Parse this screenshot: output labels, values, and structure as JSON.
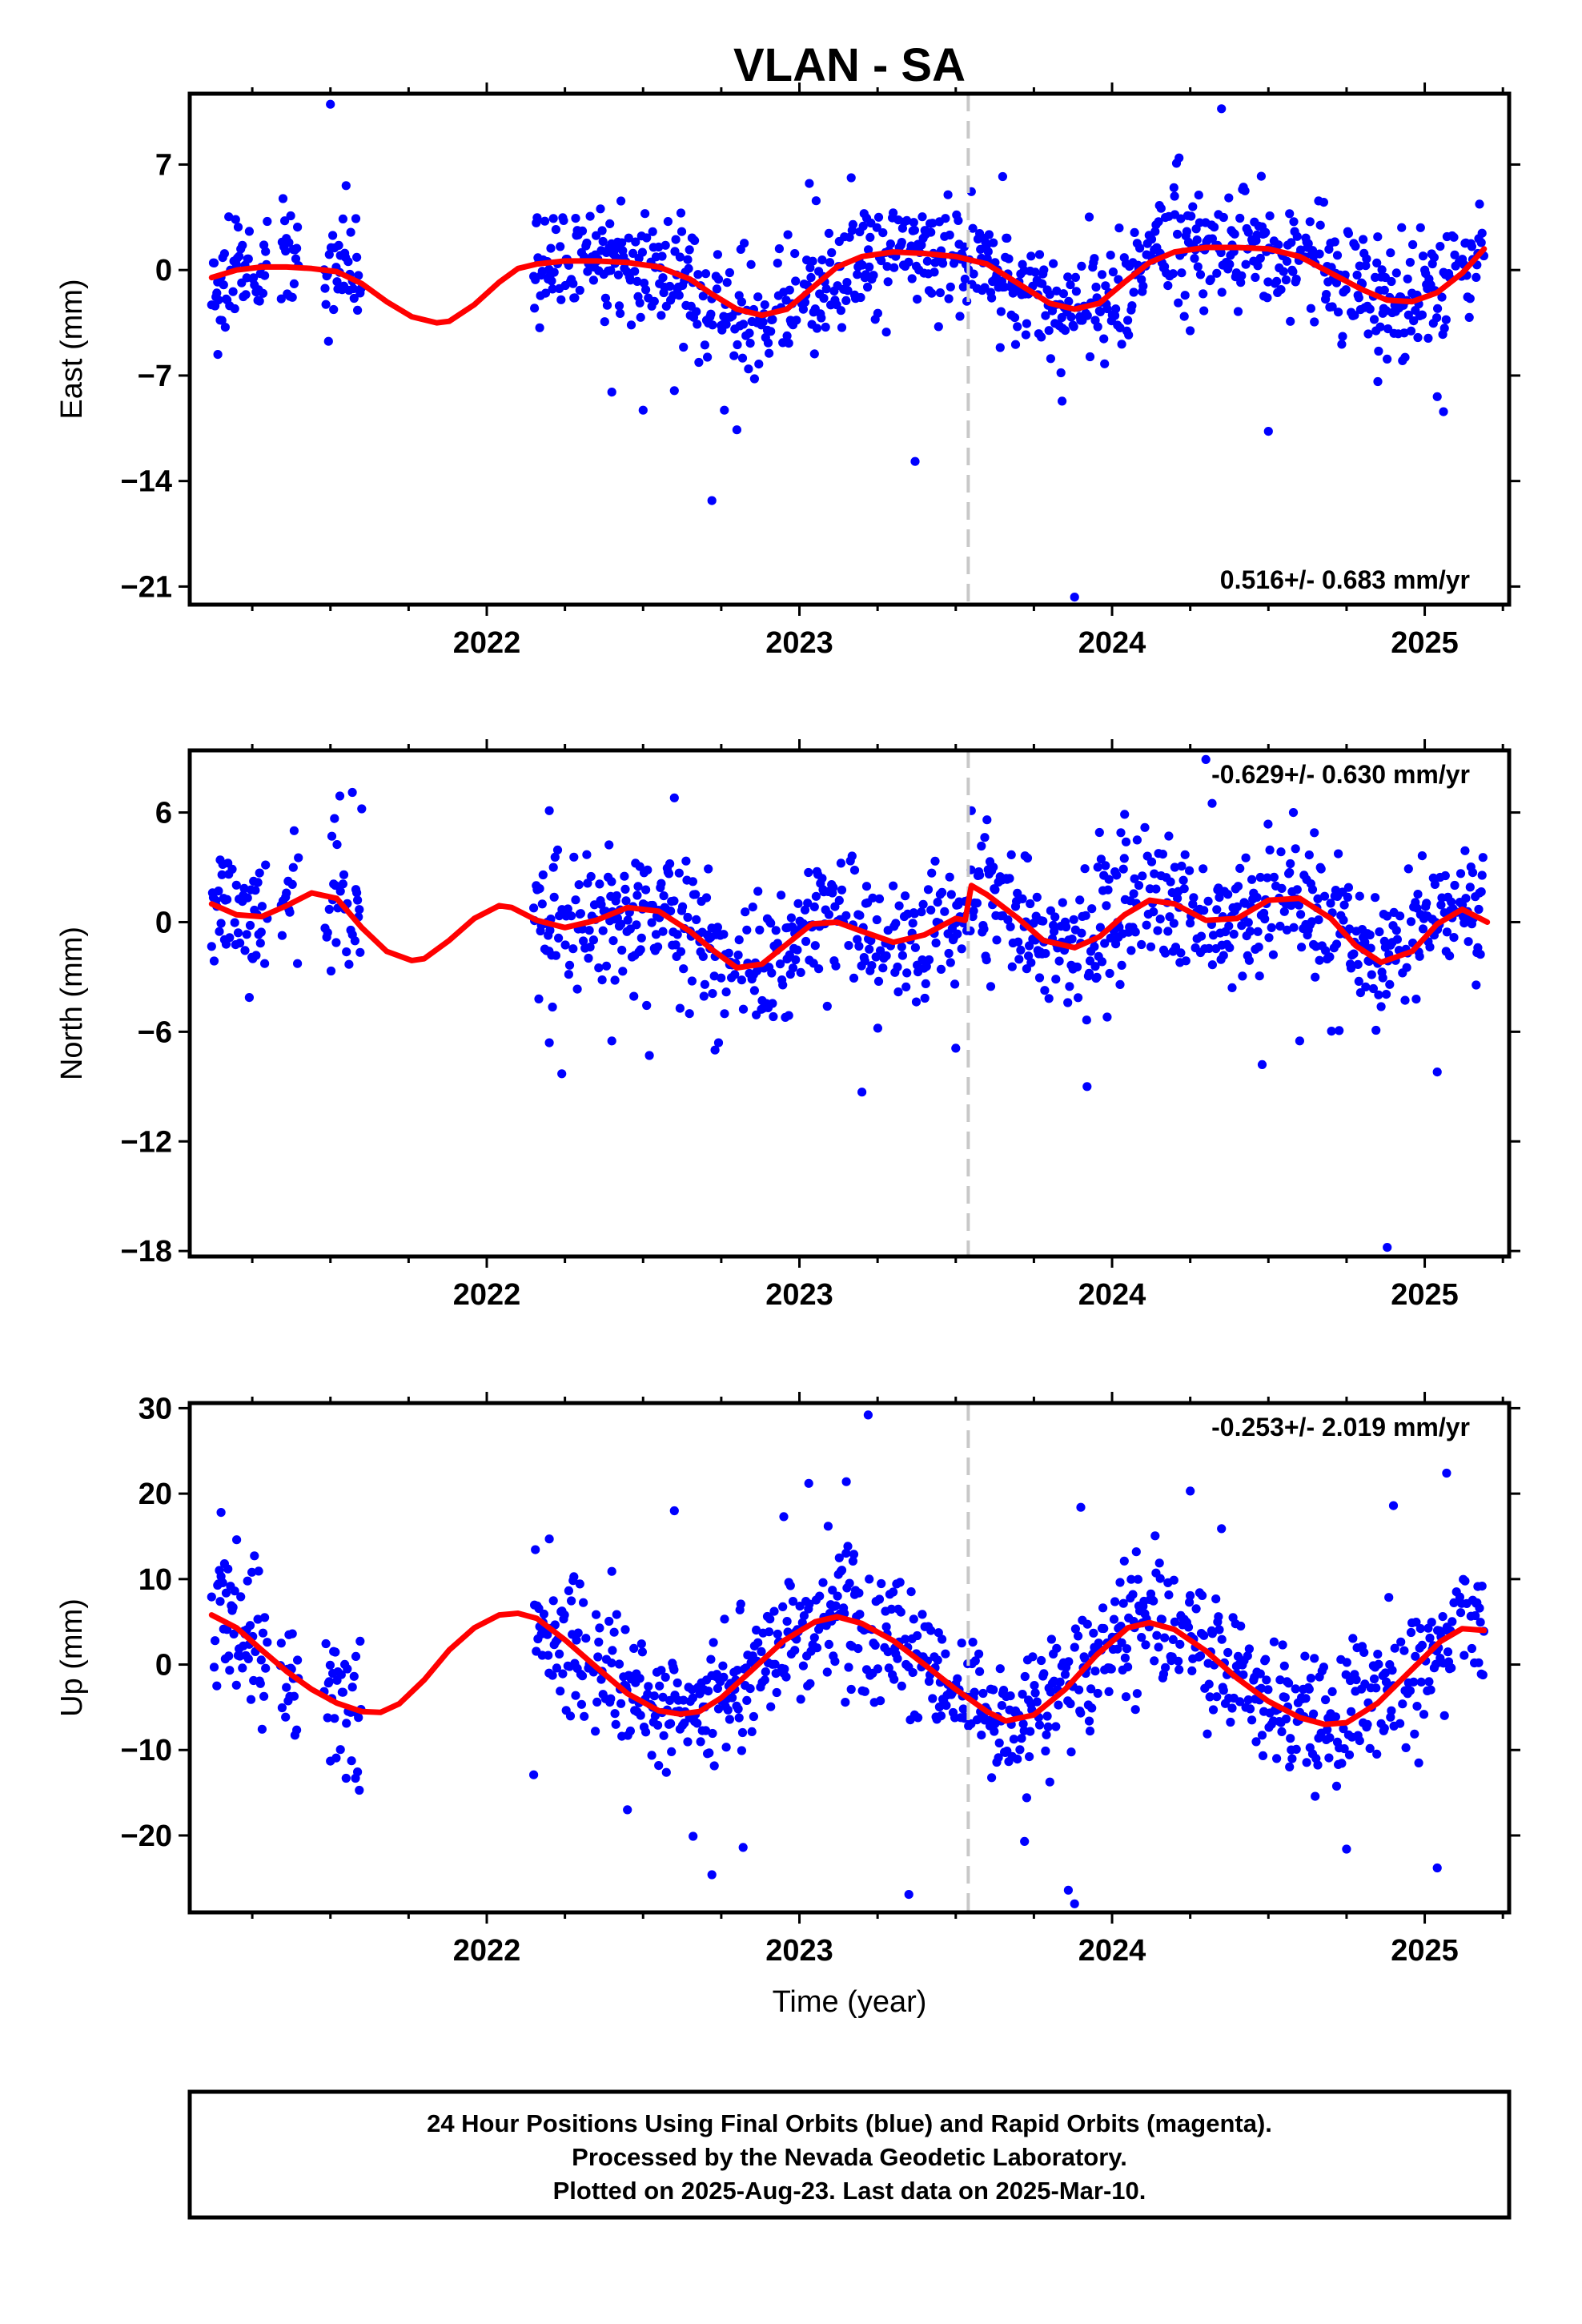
{
  "title": "VLAN - SA",
  "colors": {
    "points": "#0000ff",
    "model": "#ff0000",
    "event_line": "#c8c8c8",
    "frame": "#000000"
  },
  "chart_data": [
    {
      "type": "scatter",
      "ylabel": "East (mm)",
      "xlabel": "",
      "xlim": [
        2021.05,
        2025.27
      ],
      "ylim": [
        -22.2,
        11.7
      ],
      "yticks": [
        7,
        0,
        -7,
        -14,
        -21
      ],
      "xticks": [
        2022,
        2023,
        2024,
        2025
      ],
      "event_line_x": 2023.54,
      "rate_text": "0.516+/- 0.683 mm/yr",
      "rate_position": "bottom-right",
      "model": {
        "name": "",
        "x": [
          2021.12,
          2021.2,
          2021.28,
          2021.36,
          2021.44,
          2021.52,
          2021.6,
          2021.68,
          2021.76,
          2021.84,
          2021.88,
          2021.96,
          2022.04,
          2022.1,
          2022.16,
          2022.25,
          2022.35,
          2022.45,
          2022.55,
          2022.65,
          2022.72,
          2022.8,
          2022.88,
          2022.96,
          2023.04,
          2023.12,
          2023.2,
          2023.3,
          2023.4,
          2023.5,
          2023.6,
          2023.7,
          2023.8,
          2023.88,
          2023.96,
          2024.04,
          2024.12,
          2024.2,
          2024.3,
          2024.4,
          2024.5,
          2024.6,
          2024.7,
          2024.8,
          2024.88,
          2024.96,
          2025.04,
          2025.12,
          2025.19
        ],
        "y": [
          -0.5,
          0.0,
          0.2,
          0.2,
          0.1,
          -0.1,
          -0.9,
          -2.1,
          -3.1,
          -3.5,
          -3.4,
          -2.3,
          -0.8,
          0.1,
          0.4,
          0.6,
          0.6,
          0.5,
          0.2,
          -0.6,
          -1.6,
          -2.6,
          -3.0,
          -2.6,
          -1.2,
          0.2,
          0.9,
          1.2,
          1.1,
          0.9,
          0.4,
          -0.9,
          -2.2,
          -2.6,
          -2.2,
          -0.8,
          0.5,
          1.2,
          1.5,
          1.5,
          1.4,
          0.9,
          -0.2,
          -1.3,
          -2.0,
          -2.1,
          -1.5,
          -0.2,
          1.4
        ]
      },
      "points": {
        "seed": 11,
        "segments": [
          [
            2021.12,
            2021.3
          ],
          [
            2021.34,
            2021.4
          ],
          [
            2021.48,
            2021.6
          ],
          [
            2022.15,
            2025.19
          ]
        ],
        "scatter_sd": 1.9,
        "outliers": [
          [
            2021.5,
            11.0
          ],
          [
            2021.55,
            5.6
          ],
          [
            2021.14,
            -5.6
          ],
          [
            2022.4,
            -8.1
          ],
          [
            2022.5,
            -9.3
          ],
          [
            2022.6,
            -8.0
          ],
          [
            2022.72,
            -15.3
          ],
          [
            2022.76,
            -9.3
          ],
          [
            2022.8,
            -10.6
          ],
          [
            2023.37,
            -12.7
          ],
          [
            2023.65,
            6.2
          ],
          [
            2023.84,
            -8.7
          ],
          [
            2023.88,
            -21.7
          ],
          [
            2024.35,
            10.7
          ],
          [
            2024.5,
            -10.7
          ],
          [
            2024.85,
            -7.4
          ],
          [
            2025.04,
            -8.4
          ],
          [
            2025.06,
            -9.4
          ],
          [
            2023.55,
            5.2
          ],
          [
            2024.42,
            5.5
          ],
          [
            2024.2,
            4.9
          ]
        ]
      }
    },
    {
      "type": "scatter",
      "ylabel": "North (mm)",
      "xlabel": "",
      "xlim": [
        2021.05,
        2025.27
      ],
      "ylim": [
        -18.3,
        9.4
      ],
      "yticks": [
        6,
        0,
        -6,
        -12,
        -18
      ],
      "xticks": [
        2022,
        2023,
        2024,
        2025
      ],
      "event_line_x": 2023.54,
      "rate_text": "-0.629+/- 0.630 mm/yr",
      "rate_position": "top-right",
      "model": {
        "name": "",
        "x": [
          2021.12,
          2021.2,
          2021.28,
          2021.36,
          2021.44,
          2021.52,
          2021.6,
          2021.68,
          2021.76,
          2021.8,
          2021.88,
          2021.96,
          2022.04,
          2022.08,
          2022.16,
          2022.25,
          2022.35,
          2022.45,
          2022.55,
          2022.65,
          2022.72,
          2022.8,
          2022.88,
          2022.96,
          2023.04,
          2023.12,
          2023.2,
          2023.3,
          2023.4,
          2023.5,
          2023.53,
          2023.55,
          2023.6,
          2023.7,
          2023.78,
          2023.88,
          2023.96,
          2024.04,
          2024.12,
          2024.2,
          2024.3,
          2024.4,
          2024.5,
          2024.6,
          2024.7,
          2024.78,
          2024.86,
          2024.96,
          2025.04,
          2025.12,
          2025.2
        ],
        "y": [
          1.0,
          0.4,
          0.3,
          0.9,
          1.6,
          1.3,
          -0.3,
          -1.6,
          -2.1,
          -2.0,
          -1.0,
          0.2,
          0.9,
          0.8,
          0.1,
          -0.3,
          0.1,
          0.8,
          0.6,
          -0.5,
          -1.5,
          -2.5,
          -2.3,
          -1.2,
          -0.1,
          0.0,
          -0.5,
          -1.1,
          -0.7,
          0.2,
          0.1,
          2.0,
          1.5,
          0.2,
          -1.0,
          -1.4,
          -0.8,
          0.4,
          1.2,
          1.0,
          0.1,
          0.2,
          1.2,
          1.3,
          0.2,
          -1.3,
          -2.2,
          -1.6,
          -0.1,
          0.7,
          0.0
        ]
      },
      "points": {
        "seed": 23,
        "segments": [
          [
            2021.12,
            2021.3
          ],
          [
            2021.34,
            2021.4
          ],
          [
            2021.48,
            2021.6
          ],
          [
            2022.15,
            2025.19
          ]
        ],
        "scatter_sd": 1.8,
        "outliers": [
          [
            2021.53,
            6.9
          ],
          [
            2021.57,
            7.1
          ],
          [
            2021.6,
            6.2
          ],
          [
            2022.2,
            6.1
          ],
          [
            2022.6,
            6.8
          ],
          [
            2022.2,
            -6.6
          ],
          [
            2022.24,
            -8.3
          ],
          [
            2022.4,
            -6.5
          ],
          [
            2022.52,
            -7.3
          ],
          [
            2022.73,
            -7.0
          ],
          [
            2023.2,
            -9.3
          ],
          [
            2023.5,
            -6.9
          ],
          [
            2023.55,
            6.1
          ],
          [
            2023.6,
            5.6
          ],
          [
            2023.92,
            -9.0
          ],
          [
            2024.04,
            5.9
          ],
          [
            2024.3,
            8.9
          ],
          [
            2024.32,
            6.5
          ],
          [
            2024.48,
            -7.8
          ],
          [
            2024.58,
            6.0
          ],
          [
            2024.88,
            -17.8
          ],
          [
            2025.04,
            -8.2
          ],
          [
            2024.6,
            -6.5
          ]
        ]
      }
    },
    {
      "type": "scatter",
      "ylabel": "Up (mm)",
      "xlabel": "Time (year)",
      "xlim": [
        2021.05,
        2025.27
      ],
      "ylim": [
        -29.0,
        30.6
      ],
      "yticks": [
        30,
        20,
        10,
        0,
        -10,
        -20
      ],
      "xticks": [
        2022,
        2023,
        2024,
        2025
      ],
      "event_line_x": 2023.54,
      "rate_text": "-0.253+/- 2.019 mm/yr",
      "rate_position": "top-right",
      "model": {
        "name": "",
        "x": [
          2021.12,
          2021.2,
          2021.28,
          2021.36,
          2021.44,
          2021.52,
          2021.6,
          2021.66,
          2021.72,
          2021.8,
          2021.88,
          2021.96,
          2022.04,
          2022.1,
          2022.16,
          2022.25,
          2022.35,
          2022.45,
          2022.55,
          2022.62,
          2022.68,
          2022.75,
          2022.85,
          2022.95,
          2023.05,
          2023.12,
          2023.2,
          2023.3,
          2023.4,
          2023.5,
          2023.6,
          2023.66,
          2023.75,
          2023.85,
          2023.95,
          2024.05,
          2024.12,
          2024.2,
          2024.3,
          2024.4,
          2024.5,
          2024.6,
          2024.68,
          2024.75,
          2024.85,
          2024.95,
          2025.05,
          2025.12,
          2025.19
        ],
        "y": [
          5.8,
          4.3,
          1.7,
          -0.8,
          -2.9,
          -4.5,
          -5.5,
          -5.6,
          -4.6,
          -1.8,
          1.7,
          4.3,
          5.8,
          6.0,
          5.4,
          2.9,
          -0.3,
          -3.4,
          -5.4,
          -5.8,
          -5.5,
          -3.9,
          -0.6,
          2.8,
          5.0,
          5.6,
          4.8,
          2.8,
          0.0,
          -2.9,
          -5.5,
          -6.6,
          -5.9,
          -2.9,
          1.1,
          4.3,
          4.9,
          4.1,
          1.6,
          -1.6,
          -4.3,
          -6.2,
          -7.0,
          -6.8,
          -4.5,
          -0.9,
          2.7,
          4.2,
          4.0
        ]
      },
      "points": {
        "seed": 37,
        "segments": [
          [
            2021.12,
            2021.3
          ],
          [
            2021.34,
            2021.4
          ],
          [
            2021.48,
            2021.6
          ],
          [
            2022.15,
            2025.19
          ]
        ],
        "scatter_sd": 3.9,
        "outliers": [
          [
            2021.15,
            17.8
          ],
          [
            2021.2,
            14.6
          ],
          [
            2021.5,
            -11.3
          ],
          [
            2021.55,
            -13.3
          ],
          [
            2021.58,
            -13.3
          ],
          [
            2022.15,
            -12.9
          ],
          [
            2022.2,
            14.7
          ],
          [
            2022.4,
            10.9
          ],
          [
            2022.45,
            -17.0
          ],
          [
            2022.6,
            18.0
          ],
          [
            2022.66,
            -20.1
          ],
          [
            2022.72,
            -24.6
          ],
          [
            2022.82,
            -21.4
          ],
          [
            2022.95,
            17.3
          ],
          [
            2023.03,
            21.2
          ],
          [
            2023.15,
            21.4
          ],
          [
            2023.22,
            29.2
          ],
          [
            2023.35,
            -26.9
          ],
          [
            2023.72,
            -20.7
          ],
          [
            2023.86,
            -26.4
          ],
          [
            2023.88,
            -28.0
          ],
          [
            2023.9,
            18.4
          ],
          [
            2024.25,
            20.3
          ],
          [
            2024.35,
            15.9
          ],
          [
            2024.75,
            -21.6
          ],
          [
            2025.04,
            -23.8
          ],
          [
            2025.07,
            22.4
          ],
          [
            2024.9,
            18.6
          ]
        ]
      }
    }
  ],
  "footer": {
    "line1": "24 Hour Positions Using Final Orbits (blue) and Rapid Orbits (magenta).",
    "line2": "Processed by the Nevada Geodetic Laboratory.",
    "line3": "Plotted on 2025-Aug-23. Last data on 2025-Mar-10."
  }
}
